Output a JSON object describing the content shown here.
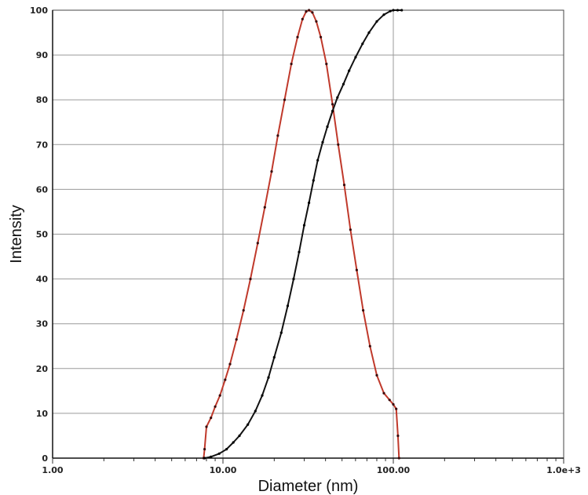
{
  "chart_data": {
    "type": "line",
    "xlabel": "Diameter (nm)",
    "ylabel": "Intensity",
    "x_scale": "log",
    "xlim": [
      1,
      1000
    ],
    "ylim": [
      0,
      100
    ],
    "x_ticks": [
      {
        "value": 1,
        "label": "1.00"
      },
      {
        "value": 10,
        "label": "10.00"
      },
      {
        "value": 100,
        "label": "100.00"
      },
      {
        "value": 1000,
        "label": "1.0e+3"
      }
    ],
    "y_ticks": [
      0,
      10,
      20,
      30,
      40,
      50,
      60,
      70,
      80,
      90,
      100
    ],
    "grid": true,
    "series": [
      {
        "color": "#c0392b",
        "points": [
          [
            7.7,
            0
          ],
          [
            7.8,
            2
          ],
          [
            8.0,
            7
          ],
          [
            8.5,
            9
          ],
          [
            9.0,
            11.5
          ],
          [
            9.6,
            14
          ],
          [
            10.3,
            17.5
          ],
          [
            11.0,
            21
          ],
          [
            12.0,
            26.5
          ],
          [
            13.2,
            33
          ],
          [
            14.5,
            40
          ],
          [
            16.0,
            48
          ],
          [
            17.6,
            56
          ],
          [
            19.3,
            64
          ],
          [
            21.0,
            72
          ],
          [
            23.0,
            80
          ],
          [
            25.2,
            88
          ],
          [
            27.4,
            94
          ],
          [
            29.3,
            98
          ],
          [
            30.8,
            99.7
          ],
          [
            32.0,
            100
          ],
          [
            33.5,
            99.5
          ],
          [
            35.3,
            97.5
          ],
          [
            37.5,
            94
          ],
          [
            40.5,
            88
          ],
          [
            44.0,
            79
          ],
          [
            47.5,
            70
          ],
          [
            51.5,
            61
          ],
          [
            56.0,
            51
          ],
          [
            61.0,
            42
          ],
          [
            66.5,
            33
          ],
          [
            73.0,
            25
          ],
          [
            80.0,
            18.5
          ],
          [
            88.0,
            14.5
          ],
          [
            95.0,
            13
          ],
          [
            100.0,
            12
          ],
          [
            104.0,
            11
          ],
          [
            106.5,
            5
          ],
          [
            108.0,
            0
          ]
        ]
      },
      {
        "color": "#111111",
        "points": [
          [
            7.8,
            0
          ],
          [
            8.5,
            0.3
          ],
          [
            9.5,
            1
          ],
          [
            10.5,
            2
          ],
          [
            11.5,
            3.5
          ],
          [
            12.5,
            5
          ],
          [
            14.0,
            7.5
          ],
          [
            15.5,
            10.5
          ],
          [
            17.0,
            14
          ],
          [
            18.5,
            18
          ],
          [
            20.0,
            22.5
          ],
          [
            22.0,
            28
          ],
          [
            24.0,
            34
          ],
          [
            26.0,
            40
          ],
          [
            28.0,
            46
          ],
          [
            30.0,
            52
          ],
          [
            32.0,
            57
          ],
          [
            34.0,
            62
          ],
          [
            36.0,
            66.5
          ],
          [
            38.5,
            70.5
          ],
          [
            41.0,
            74
          ],
          [
            44.0,
            77.5
          ],
          [
            47.0,
            80.5
          ],
          [
            51.0,
            83.5
          ],
          [
            55.0,
            86.5
          ],
          [
            60.0,
            89.5
          ],
          [
            66.0,
            92.5
          ],
          [
            72.0,
            95
          ],
          [
            80.0,
            97.5
          ],
          [
            88.0,
            99
          ],
          [
            96.0,
            99.8
          ],
          [
            100.0,
            100
          ],
          [
            106.0,
            100
          ],
          [
            112.0,
            100
          ]
        ]
      }
    ]
  }
}
